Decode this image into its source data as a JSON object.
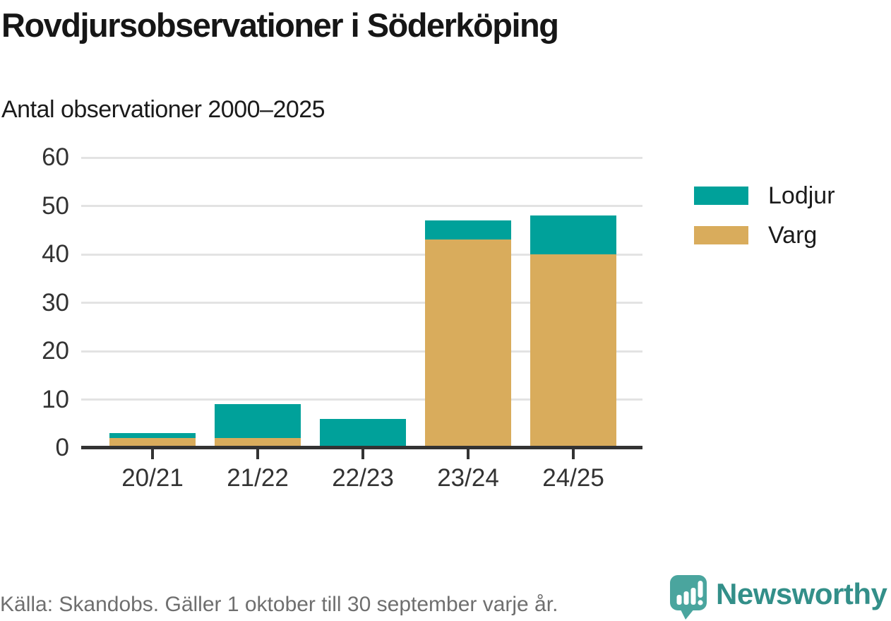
{
  "header": {
    "title": "Rovdjursobservationer i Söderköping",
    "subtitle": "Antal observationer 2000–2025"
  },
  "chart_data": {
    "type": "bar",
    "stacked": true,
    "title": "Rovdjursobservationer i Söderköping",
    "subtitle": "Antal observationer 2000–2025",
    "categories": [
      "20/21",
      "21/22",
      "22/23",
      "23/24",
      "24/25"
    ],
    "series": [
      {
        "name": "Lodjur",
        "color": "#00A19A",
        "values": [
          1,
          7,
          6,
          4,
          8
        ]
      },
      {
        "name": "Varg",
        "color": "#D9AC5C",
        "values": [
          2,
          2,
          0,
          43,
          40
        ]
      }
    ],
    "stack_order_bottom_to_top": [
      "Varg",
      "Lodjur"
    ],
    "totals": [
      3,
      9,
      6,
      47,
      48
    ],
    "xlabel": "",
    "ylabel": "",
    "ylim": [
      0,
      60
    ],
    "yticks": [
      0,
      10,
      20,
      30,
      40,
      50,
      60
    ],
    "grid": true,
    "legend_position": "right"
  },
  "colors": {
    "lodjur": "#00A19A",
    "varg": "#D9AC5C",
    "axis": "#333333",
    "gridline": "#E3E3E3",
    "footer_text": "#6F6F6F",
    "brand_teal": "#338F89",
    "brand_icon": "#4AA59E"
  },
  "footer": {
    "source": "Källa: Skandobs. Gäller 1 oktober till 30 september varje år.",
    "brand": "Newsworthy"
  }
}
